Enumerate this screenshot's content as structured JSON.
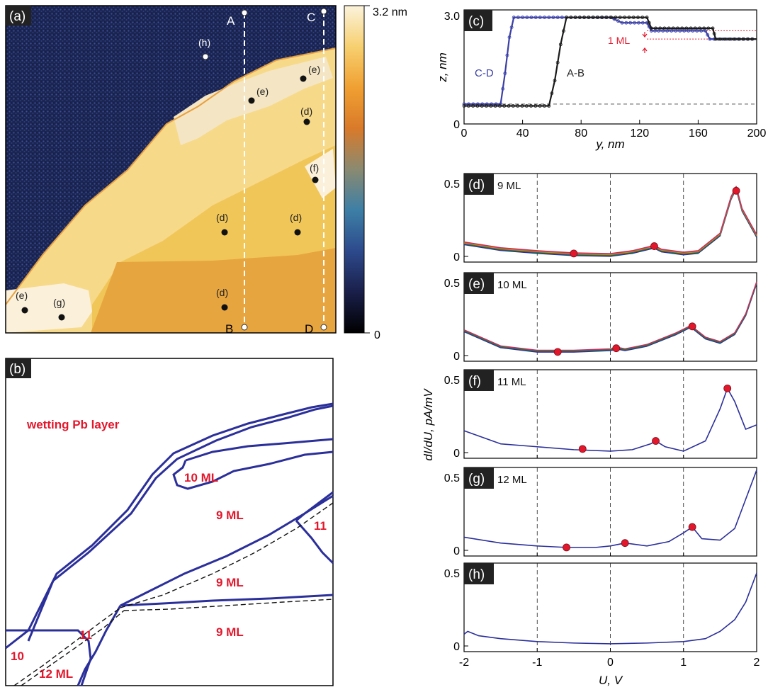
{
  "panel_a": {
    "tag": "(a)",
    "colorbar": {
      "max_label": "3.2 nm",
      "min_label": "0",
      "stops": [
        "#000000",
        "#1a1f4a",
        "#2d4a8c",
        "#3d7fa6",
        "#8a8a70",
        "#d97a2a",
        "#f0a032",
        "#f7d070",
        "#fbf3dc"
      ]
    },
    "line_labels": {
      "A": "A",
      "B": "B",
      "C": "C",
      "D": "D"
    },
    "point_labels": [
      {
        "id": "h",
        "text": "(h)"
      },
      {
        "id": "e1",
        "text": "(e)"
      },
      {
        "id": "e2",
        "text": "(e)"
      },
      {
        "id": "d1",
        "text": "(d)"
      },
      {
        "id": "f",
        "text": "(f)"
      },
      {
        "id": "d2",
        "text": "(d)"
      },
      {
        "id": "d3",
        "text": "(d)"
      },
      {
        "id": "d4",
        "text": "(d)"
      },
      {
        "id": "e3",
        "text": "(e)"
      },
      {
        "id": "g",
        "text": "(g)"
      }
    ],
    "colors": {
      "substrate": "#1b2550",
      "layer10": "#f4e6c4",
      "layer9": "#f7d98a",
      "layer9b": "#f1c658",
      "layer9c": "#e7a540",
      "layer12": "#fbf0da"
    }
  },
  "panel_b": {
    "tag": "(b)",
    "title": "wetting Pb layer",
    "labels": [
      "10 ML",
      "9 ML",
      "11",
      "9 ML",
      "9 ML",
      "11",
      "10",
      "12 ML"
    ],
    "colors": {
      "boundary": "#2b2f9a",
      "label": "#e3172c"
    }
  },
  "chart_data": [
    {
      "id": "c",
      "type": "line",
      "tag": "(c)",
      "xlabel": "y, nm",
      "ylabel": "z, nm",
      "xlim": [
        0,
        200
      ],
      "ylim": [
        0,
        3.0
      ],
      "xticks": [
        "0",
        "40",
        "80",
        "120",
        "160",
        "200"
      ],
      "yticks": [
        "0",
        "3.0"
      ],
      "annotation": "1 ML",
      "series": [
        {
          "name": "C-D",
          "color": "#3a3fa6",
          "x": [
            0,
            25,
            28,
            31,
            34,
            100,
            108,
            125,
            128,
            133,
            165,
            168,
            200
          ],
          "y": [
            0.55,
            0.55,
            1.4,
            2.4,
            2.95,
            2.95,
            2.8,
            2.8,
            2.58,
            2.58,
            2.58,
            2.35,
            2.35
          ]
        },
        {
          "name": "A-B",
          "color": "#1a1a1a",
          "x": [
            0,
            58,
            62,
            66,
            70,
            125,
            128,
            170,
            172,
            200
          ],
          "y": [
            0.5,
            0.5,
            1.2,
            2.2,
            2.95,
            2.95,
            2.65,
            2.65,
            2.35,
            2.35
          ]
        }
      ]
    },
    {
      "id": "spectra",
      "type": "line",
      "xlabel": "U, V",
      "ylabel": "dI/dU, pA/mV",
      "xlim": [
        -2,
        2
      ],
      "xticks": [
        "-2",
        "-1",
        "0",
        "1",
        "2"
      ],
      "panels": [
        {
          "tag": "(d)",
          "label": "9 ML",
          "ylim": [
            0,
            0.5
          ],
          "yticks": [
            "0",
            "0.5"
          ],
          "colors": [
            "#2b2f9a",
            "#1d7a3a",
            "#e07a20",
            "#c0335e"
          ],
          "x": [
            -2,
            -1.5,
            -1,
            -0.5,
            0,
            0.3,
            0.55,
            0.6,
            0.7,
            1,
            1.2,
            1.5,
            1.65,
            1.72,
            1.8,
            2
          ],
          "y": [
            0.09,
            0.05,
            0.03,
            0.015,
            0.01,
            0.03,
            0.06,
            0.065,
            0.04,
            0.02,
            0.03,
            0.15,
            0.4,
            0.47,
            0.32,
            0.14
          ],
          "markers": [
            [
              -0.5,
              0.02
            ],
            [
              0.6,
              0.07
            ],
            [
              1.72,
              0.45
            ]
          ]
        },
        {
          "tag": "(e)",
          "label": "10 ML",
          "ylim": [
            0,
            0.5
          ],
          "yticks": [
            "0",
            "0.5"
          ],
          "colors": [
            "#2b2f9a",
            "#1d7a3a",
            "#c0335e"
          ],
          "x": [
            -2,
            -1.5,
            -1,
            -0.5,
            0,
            0.1,
            0.2,
            0.5,
            0.9,
            1.1,
            1.3,
            1.5,
            1.7,
            1.85,
            2
          ],
          "y": [
            0.17,
            0.06,
            0.03,
            0.03,
            0.04,
            0.05,
            0.04,
            0.07,
            0.15,
            0.2,
            0.12,
            0.09,
            0.15,
            0.28,
            0.5
          ],
          "markers": [
            [
              -0.72,
              0.025
            ],
            [
              0.08,
              0.05
            ],
            [
              1.12,
              0.2
            ]
          ]
        },
        {
          "tag": "(f)",
          "label": "11 ML",
          "ylim": [
            0,
            0.5
          ],
          "yticks": [
            "0",
            "0.5"
          ],
          "colors": [
            "#2b2f9a"
          ],
          "x": [
            -2,
            -1.5,
            -1,
            -0.5,
            0,
            0.3,
            0.55,
            0.62,
            0.75,
            1,
            1.3,
            1.5,
            1.6,
            1.7,
            1.85,
            2
          ],
          "y": [
            0.15,
            0.06,
            0.04,
            0.02,
            0.01,
            0.02,
            0.06,
            0.08,
            0.04,
            0.01,
            0.08,
            0.3,
            0.44,
            0.35,
            0.16,
            0.19
          ],
          "markers": [
            [
              -0.38,
              0.025
            ],
            [
              0.62,
              0.08
            ],
            [
              1.6,
              0.44
            ]
          ]
        },
        {
          "tag": "(g)",
          "label": "12 ML",
          "ylim": [
            0,
            0.5
          ],
          "yticks": [
            "0",
            "0.5"
          ],
          "colors": [
            "#2b2f9a"
          ],
          "x": [
            -2,
            -1.5,
            -1,
            -0.6,
            -0.2,
            0,
            0.2,
            0.5,
            0.8,
            1.0,
            1.12,
            1.25,
            1.5,
            1.7,
            1.85,
            2
          ],
          "y": [
            0.09,
            0.05,
            0.03,
            0.02,
            0.02,
            0.03,
            0.05,
            0.03,
            0.06,
            0.12,
            0.16,
            0.08,
            0.07,
            0.15,
            0.35,
            0.55
          ],
          "markers": [
            [
              -0.6,
              0.02
            ],
            [
              0.2,
              0.05
            ],
            [
              1.12,
              0.16
            ]
          ]
        },
        {
          "tag": "(h)",
          "label": "",
          "ylim": [
            0,
            0.5
          ],
          "yticks": [
            "0",
            "0.5"
          ],
          "colors": [
            "#2b2f9a"
          ],
          "x": [
            -2,
            -1.95,
            -1.8,
            -1.5,
            -1,
            -0.5,
            0,
            0.5,
            1,
            1.3,
            1.5,
            1.7,
            1.85,
            2
          ],
          "y": [
            0.08,
            0.1,
            0.07,
            0.05,
            0.03,
            0.02,
            0.015,
            0.02,
            0.03,
            0.05,
            0.1,
            0.18,
            0.3,
            0.5
          ],
          "markers": []
        }
      ]
    }
  ]
}
